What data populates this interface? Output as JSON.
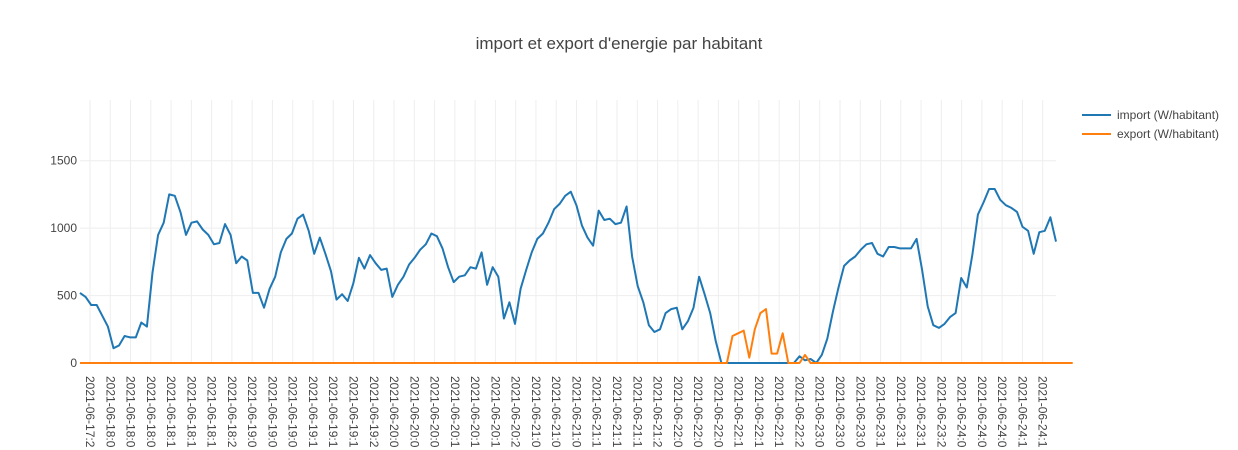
{
  "chart_data": {
    "type": "line",
    "title": "import et export d'energie par habitant",
    "xlabel": "",
    "ylabel": "",
    "ylim": [
      0,
      1950
    ],
    "yticks": [
      0,
      500,
      1000,
      1500
    ],
    "grid": true,
    "legend_position": "top-right",
    "x_tick_labels": [
      "2021-06-17:2",
      "2021-06-18:0",
      "2021-06-18:0",
      "2021-06-18:0",
      "2021-06-18:1",
      "2021-06-18:1",
      "2021-06-18:1",
      "2021-06-18:2",
      "2021-06-19:0",
      "2021-06-19:0",
      "2021-06-19:0",
      "2021-06-19:1",
      "2021-06-19:1",
      "2021-06-19:1",
      "2021-06-19:2",
      "2021-06-20:0",
      "2021-06-20:0",
      "2021-06-20:0",
      "2021-06-20:1",
      "2021-06-20:1",
      "2021-06-20:1",
      "2021-06-20:2",
      "2021-06-21:0",
      "2021-06-21:0",
      "2021-06-21:0",
      "2021-06-21:1",
      "2021-06-21:1",
      "2021-06-21:1",
      "2021-06-21:2",
      "2021-06-22:0",
      "2021-06-22:0",
      "2021-06-22:0",
      "2021-06-22:1",
      "2021-06-22:1",
      "2021-06-22:1",
      "2021-06-22:2",
      "2021-06-23:0",
      "2021-06-23:0",
      "2021-06-23:0",
      "2021-06-23:1",
      "2021-06-23:1",
      "2021-06-23:1",
      "2021-06-23:2",
      "2021-06-24:0",
      "2021-06-24:0",
      "2021-06-24:0",
      "2021-06-24:1",
      "2021-06-24:1",
      "2021-06-24:1"
    ],
    "series": [
      {
        "name": "import (W/habitant)",
        "color": "#1f77b4",
        "values": [
          520,
          490,
          430,
          430,
          350,
          270,
          110,
          130,
          200,
          190,
          190,
          300,
          270,
          670,
          950,
          1040,
          1250,
          1240,
          1120,
          950,
          1040,
          1050,
          990,
          950,
          880,
          890,
          1030,
          950,
          740,
          790,
          760,
          520,
          520,
          410,
          550,
          640,
          820,
          920,
          960,
          1070,
          1100,
          980,
          810,
          930,
          810,
          680,
          470,
          510,
          460,
          590,
          780,
          700,
          800,
          740,
          690,
          700,
          490,
          580,
          640,
          730,
          780,
          840,
          880,
          960,
          940,
          850,
          710,
          600,
          640,
          650,
          710,
          700,
          820,
          580,
          710,
          640,
          330,
          450,
          290,
          550,
          690,
          820,
          920,
          960,
          1040,
          1140,
          1180,
          1240,
          1270,
          1170,
          1020,
          930,
          870,
          1130,
          1060,
          1070,
          1030,
          1040,
          1160,
          790,
          570,
          450,
          280,
          230,
          250,
          370,
          400,
          410,
          250,
          310,
          410,
          640,
          510,
          370,
          160,
          0,
          0,
          0,
          0,
          0,
          0,
          0,
          0,
          0,
          0,
          0,
          0,
          0,
          0,
          50,
          20,
          30,
          0,
          60,
          180,
          380,
          560,
          720,
          760,
          790,
          840,
          880,
          890,
          810,
          790,
          860,
          860,
          850,
          850,
          850,
          920,
          690,
          420,
          280,
          260,
          290,
          340,
          370,
          630,
          560,
          800,
          1100,
          1190,
          1290,
          1290,
          1210,
          1170,
          1150,
          1120,
          1010,
          980,
          810,
          970,
          980,
          1080,
          900
        ]
      },
      {
        "name": "export (W/habitant)",
        "color": "#ff7f0e",
        "values": [
          0,
          0,
          0,
          0,
          0,
          0,
          0,
          0,
          0,
          0,
          0,
          0,
          0,
          0,
          0,
          0,
          0,
          0,
          0,
          0,
          0,
          0,
          0,
          0,
          0,
          0,
          0,
          0,
          0,
          0,
          0,
          0,
          0,
          0,
          0,
          0,
          0,
          0,
          0,
          0,
          0,
          0,
          0,
          0,
          0,
          0,
          0,
          0,
          0,
          0,
          0,
          0,
          0,
          0,
          0,
          0,
          0,
          0,
          0,
          0,
          0,
          0,
          0,
          0,
          0,
          0,
          0,
          0,
          0,
          0,
          0,
          0,
          0,
          0,
          0,
          0,
          0,
          0,
          0,
          0,
          0,
          0,
          0,
          0,
          0,
          0,
          0,
          0,
          0,
          0,
          0,
          0,
          0,
          0,
          0,
          0,
          0,
          0,
          0,
          0,
          0,
          0,
          0,
          0,
          0,
          0,
          0,
          0,
          0,
          0,
          0,
          0,
          0,
          0,
          0,
          0,
          0,
          200,
          220,
          240,
          40,
          250,
          370,
          400,
          70,
          70,
          220,
          0,
          0,
          0,
          60,
          0,
          0,
          0,
          0,
          0,
          0,
          0,
          0,
          0,
          0,
          0,
          0,
          0,
          0,
          0,
          0,
          0,
          0,
          0,
          0,
          0,
          0,
          0,
          0,
          0,
          0,
          0,
          0,
          0,
          0,
          0,
          0,
          0,
          0,
          0,
          0,
          0,
          0,
          0,
          0,
          0,
          0,
          0,
          0,
          0,
          0,
          0,
          0
        ]
      }
    ]
  }
}
